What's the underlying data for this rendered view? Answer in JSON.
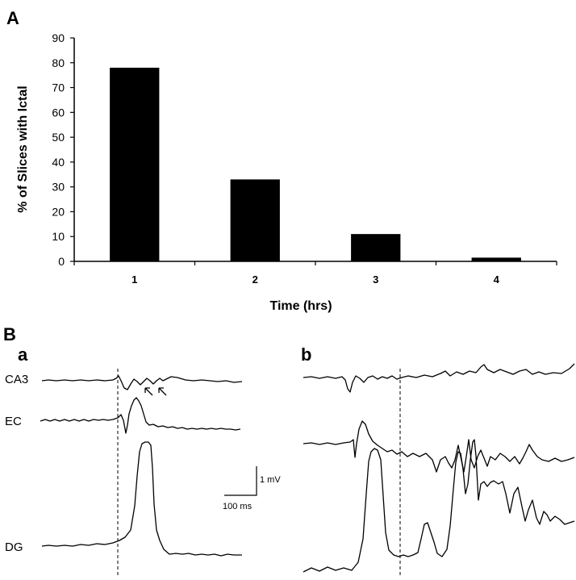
{
  "panel_a_label": "A",
  "panel_b_label": "B",
  "chart_data": {
    "type": "bar",
    "categories": [
      "1",
      "2",
      "3",
      "4"
    ],
    "values": [
      78,
      33,
      11,
      1.5
    ],
    "xlabel": "Time (hrs)",
    "ylabel": "% of Slices with Ictal",
    "ylim": [
      0,
      90
    ],
    "yticks": [
      0,
      10,
      20,
      30,
      40,
      50,
      60,
      70,
      80,
      90
    ],
    "bar_color": "#000000",
    "grid": false
  },
  "traces": {
    "subpanel_a_label": "a",
    "subpanel_b_label": "b",
    "channel_labels": [
      "CA3",
      "EC",
      "DG"
    ],
    "scale_bar_voltage": "1 mV",
    "scale_bar_time": "100 ms",
    "arrow_count": 2
  }
}
